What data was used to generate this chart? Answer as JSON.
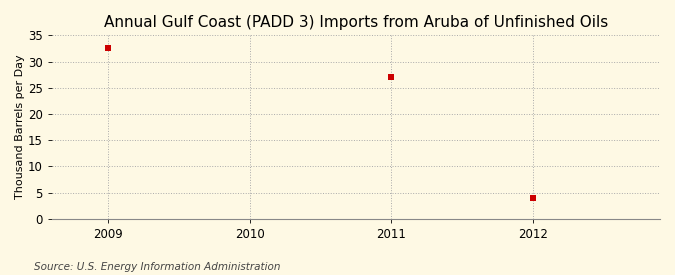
{
  "title": "Annual Gulf Coast (PADD 3) Imports from Aruba of Unfinished Oils",
  "ylabel": "Thousand Barrels per Day",
  "source": "Source: U.S. Energy Information Administration",
  "x_data": [
    2009,
    2011,
    2012
  ],
  "y_data": [
    32.5,
    27.0,
    4.0
  ],
  "xlim": [
    2008.6,
    2012.9
  ],
  "ylim": [
    0,
    35
  ],
  "yticks": [
    0,
    5,
    10,
    15,
    20,
    25,
    30,
    35
  ],
  "xticks": [
    2009,
    2010,
    2011,
    2012
  ],
  "marker_color": "#CC0000",
  "marker_size": 18,
  "grid_color": "#AAAAAA",
  "background_color": "#FEF9E4",
  "title_fontsize": 11,
  "label_fontsize": 8,
  "tick_fontsize": 8.5,
  "source_fontsize": 7.5
}
